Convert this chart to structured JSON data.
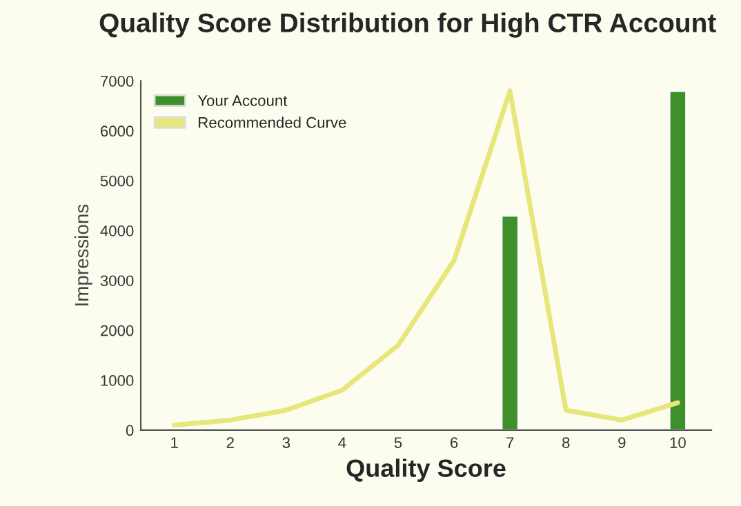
{
  "chart_data": {
    "type": "bar",
    "title": "Quality Score Distribution for High CTR Account",
    "xlabel": "Quality Score",
    "ylabel": "Impressions",
    "categories": [
      "1",
      "2",
      "3",
      "4",
      "5",
      "6",
      "7",
      "8",
      "9",
      "10"
    ],
    "series": [
      {
        "name": "Your Account",
        "color": "#3f8f2a",
        "values": [
          null,
          null,
          null,
          null,
          null,
          null,
          4300,
          null,
          null,
          6800
        ]
      },
      {
        "name": "Recommended Curve",
        "type": "line",
        "color": "#e6e67a",
        "values": [
          100,
          200,
          400,
          800,
          1700,
          3400,
          6800,
          400,
          200,
          550
        ]
      }
    ],
    "ylim": [
      0,
      7000
    ],
    "yticks": [
      0,
      1000,
      2000,
      3000,
      4000,
      5000,
      6000,
      7000
    ],
    "grid": false,
    "legend": "top left"
  }
}
